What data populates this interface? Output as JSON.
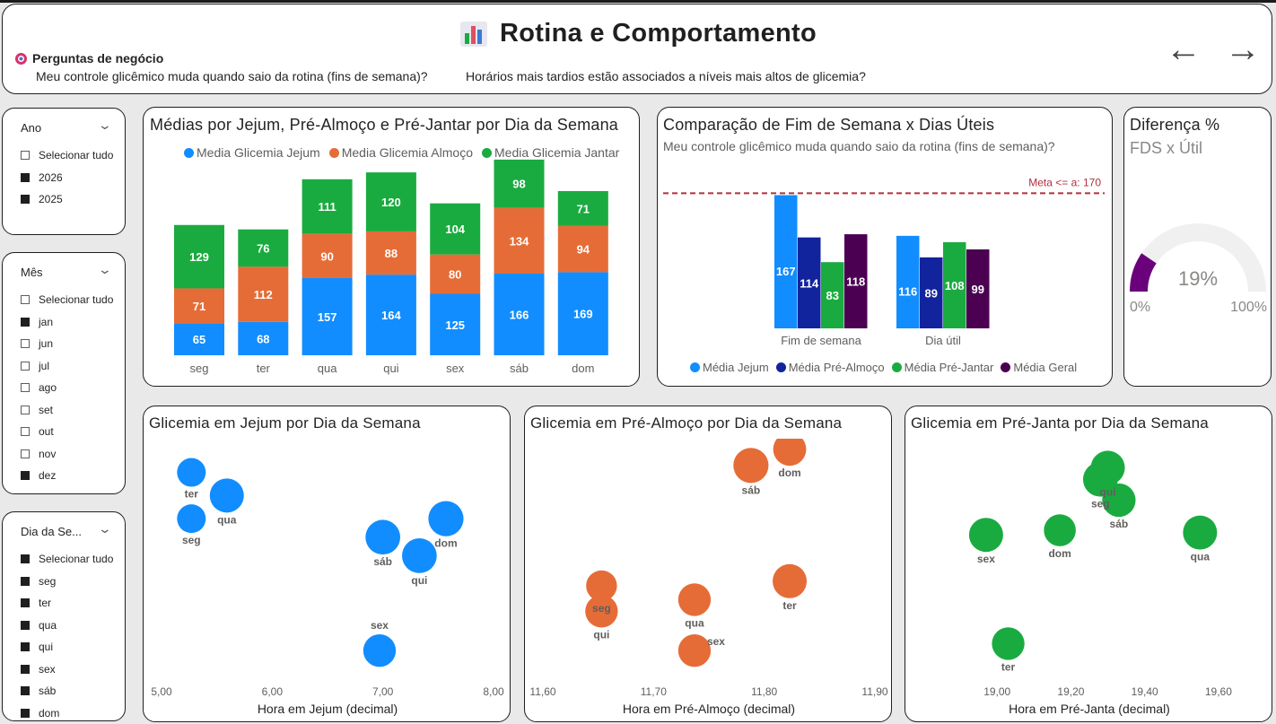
{
  "header": {
    "icon": "bar-chart-emoji-icon",
    "title": "Rotina e Comportamento",
    "questions_label": "Perguntas de negócio",
    "question_1": "Meu controle glicêmico muda quando saio da rotina (fins de semana)?",
    "question_2": "Horários mais tardios estão associados a níveis mais altos de glicemia?",
    "nav_back_icon": "arrow-left-icon",
    "nav_forward_icon": "arrow-right-icon"
  },
  "slicers": {
    "ano": {
      "title": "Ano",
      "items": [
        {
          "label": "Selecionar tudo",
          "state": "partial"
        },
        {
          "label": "2026",
          "state": "on"
        },
        {
          "label": "2025",
          "state": "on"
        }
      ]
    },
    "mes": {
      "title": "Mês",
      "items": [
        {
          "label": "Selecionar tudo",
          "state": "partial"
        },
        {
          "label": "jan",
          "state": "on"
        },
        {
          "label": "jun",
          "state": "off"
        },
        {
          "label": "jul",
          "state": "off"
        },
        {
          "label": "ago",
          "state": "off"
        },
        {
          "label": "set",
          "state": "off"
        },
        {
          "label": "out",
          "state": "off"
        },
        {
          "label": "nov",
          "state": "off"
        },
        {
          "label": "dez",
          "state": "on"
        }
      ]
    },
    "dia": {
      "title": "Dia da Se...",
      "items": [
        {
          "label": "Selecionar tudo",
          "state": "on"
        },
        {
          "label": "seg",
          "state": "on"
        },
        {
          "label": "ter",
          "state": "on"
        },
        {
          "label": "qua",
          "state": "on"
        },
        {
          "label": "qui",
          "state": "on"
        },
        {
          "label": "sex",
          "state": "on"
        },
        {
          "label": "sáb",
          "state": "on"
        },
        {
          "label": "dom",
          "state": "on"
        }
      ]
    }
  },
  "gauge": {
    "title": "Diferença %",
    "subtitle": "FDS x Útil",
    "value_label": "19%",
    "value": 0.19,
    "min_label": "0%",
    "max_label": "100%",
    "color": "#6b007b"
  },
  "chart_data": [
    {
      "id": "stacked",
      "type": "bar",
      "stacked": true,
      "title": "Médias por Jejum, Pré-Almoço e Pré-Jantar por Dia da Semana",
      "categories": [
        "seg",
        "ter",
        "qua",
        "qui",
        "sex",
        "sáb",
        "dom"
      ],
      "series": [
        {
          "name": "Media Glicemia Jejum",
          "color": "#118dff",
          "values": [
            65,
            68,
            157,
            164,
            125,
            166,
            169
          ]
        },
        {
          "name": "Media Glicemia Almoço",
          "color": "#e66c37",
          "values": [
            71,
            112,
            90,
            88,
            80,
            134,
            94
          ]
        },
        {
          "name": "Media Glicemia Jantar",
          "color": "#1aab40",
          "values": [
            129,
            76,
            111,
            120,
            104,
            98,
            71
          ]
        }
      ],
      "ylim": [
        0,
        400
      ],
      "legend": "top"
    },
    {
      "id": "weekend",
      "type": "bar",
      "title": "Comparação de Fim de Semana x Dias Úteis",
      "subtitle": "Meu controle glicêmico muda quando saio da rotina (fins de semana)?",
      "categories": [
        "Fim de semana",
        "Dia útil"
      ],
      "series": [
        {
          "name": "Média Jejum",
          "color": "#118dff",
          "values": [
            167,
            116
          ]
        },
        {
          "name": "Média Pré-Almoço",
          "color": "#12239e",
          "values": [
            114,
            89
          ]
        },
        {
          "name": "Média Pré-Jantar",
          "color": "#1aab40",
          "values": [
            83,
            108
          ]
        },
        {
          "name": "Média Geral",
          "color": "#4b0052",
          "values": [
            118,
            99
          ]
        }
      ],
      "reference_line": {
        "label": "Meta <= a: 170",
        "value": 170,
        "color": "#b0303c"
      },
      "ylim": [
        0,
        180
      ],
      "legend": "bottom"
    },
    {
      "id": "jejum",
      "type": "scatter",
      "title": "Glicemia em Jejum por Dia da Semana",
      "xlabel": "Hora em Jejum (decimal)",
      "color": "#118dff",
      "xlim": [
        5.0,
        8.0
      ],
      "xticks": [
        "5,00",
        "6,00",
        "7,00",
        "8,00"
      ],
      "points": [
        {
          "label": "ter",
          "x": 5.27,
          "y": 0.87,
          "size": 0.5
        },
        {
          "label": "qua",
          "x": 5.59,
          "y": 0.77,
          "size": 0.75
        },
        {
          "label": "seg",
          "x": 5.27,
          "y": 0.67,
          "size": 0.5
        },
        {
          "label": "dom",
          "x": 7.57,
          "y": 0.67,
          "size": 0.8
        },
        {
          "label": "sáb",
          "x": 7.0,
          "y": 0.59,
          "size": 0.78
        },
        {
          "label": "qui",
          "x": 7.33,
          "y": 0.51,
          "size": 0.78
        },
        {
          "label": "sex",
          "x": 6.97,
          "y": 0.1,
          "size": 0.68
        }
      ]
    },
    {
      "id": "almoco",
      "type": "scatter",
      "title": "Glicemia em Pré-Almoço por Dia da Semana",
      "xlabel": "Hora em Pré-Almoço (decimal)",
      "color": "#e66c37",
      "xlim": [
        11.6,
        11.9
      ],
      "xticks": [
        "11,60",
        "11,70",
        "11,80",
        "11,90"
      ],
      "points": [
        {
          "label": "dom",
          "x": 11.823,
          "y": 0.97,
          "size": 0.7
        },
        {
          "label": "sáb",
          "x": 11.788,
          "y": 0.9,
          "size": 0.8
        },
        {
          "label": "ter",
          "x": 11.823,
          "y": 0.4,
          "size": 0.75
        },
        {
          "label": "seg",
          "x": 11.653,
          "y": 0.38,
          "size": 0.6
        },
        {
          "label": "qua",
          "x": 11.737,
          "y": 0.32,
          "size": 0.68
        },
        {
          "label": "qui",
          "x": 11.653,
          "y": 0.27,
          "size": 0.68
        },
        {
          "label": "sex",
          "x": 11.737,
          "y": 0.1,
          "size": 0.68
        }
      ]
    },
    {
      "id": "janta",
      "type": "scatter",
      "title": "Glicemia em Pré-Janta por Dia da Semana",
      "xlabel": "Hora em Pré-Janta (decimal)",
      "color": "#1aab40",
      "xlim": [
        18.8,
        19.7
      ],
      "xticks": [
        "19,00",
        "19,20",
        "19,40",
        "19,60"
      ],
      "points": [
        {
          "label": "qui",
          "x": 19.3,
          "y": 0.89,
          "size": 0.75
        },
        {
          "label": "seg",
          "x": 19.28,
          "y": 0.84,
          "size": 0.78
        },
        {
          "label": "sáb",
          "x": 19.33,
          "y": 0.75,
          "size": 0.72
        },
        {
          "label": "sex",
          "x": 18.97,
          "y": 0.6,
          "size": 0.75
        },
        {
          "label": "dom",
          "x": 19.17,
          "y": 0.62,
          "size": 0.65
        },
        {
          "label": "qua",
          "x": 19.55,
          "y": 0.61,
          "size": 0.75
        },
        {
          "label": "ter",
          "x": 19.03,
          "y": 0.13,
          "size": 0.68
        }
      ]
    }
  ]
}
